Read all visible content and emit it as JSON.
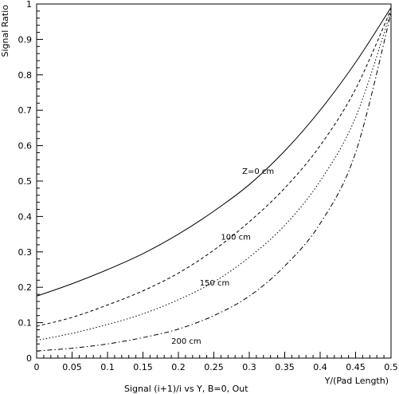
{
  "chart_data": {
    "type": "line",
    "title": "",
    "xlabel": "Y/(Pad Length)",
    "ylabel": "Signal Ratio",
    "caption": "Signal (i+1)/i vs Y, B=0, Out",
    "xlim": [
      0,
      0.5
    ],
    "ylim": [
      0,
      1
    ],
    "grid": false,
    "legend": "none",
    "x_ticks": [
      0,
      0.05,
      0.1,
      0.15,
      0.2,
      0.25,
      0.3,
      0.35,
      0.4,
      0.45,
      0.5
    ],
    "x_tick_labels": [
      "0",
      "0.05",
      "0.1",
      "0.15",
      "0.2",
      "0.25",
      "0.3",
      "0.35",
      "0.4",
      "0.45",
      "0.5"
    ],
    "y_ticks": [
      0,
      0.1,
      0.2,
      0.3,
      0.4,
      0.5,
      0.6,
      0.7,
      0.8,
      0.9,
      1
    ],
    "y_tick_labels": [
      "0",
      "0.1",
      "0.2",
      "0.3",
      "0.4",
      "0.5",
      "0.6",
      "0.7",
      "0.8",
      "0.9",
      "1"
    ],
    "x": [
      0,
      0.05,
      0.1,
      0.15,
      0.2,
      0.25,
      0.3,
      0.35,
      0.4,
      0.45,
      0.5
    ],
    "series": [
      {
        "name": "Z=0 cm",
        "dash": "solid",
        "label_at": [
          0.29,
          0.52
        ],
        "values": [
          0.175,
          0.21,
          0.25,
          0.295,
          0.35,
          0.415,
          0.49,
          0.585,
          0.7,
          0.835,
          0.99
        ]
      },
      {
        "name": "100 cm",
        "dash": "dashed",
        "label_at": [
          0.26,
          0.335
        ],
        "values": [
          0.09,
          0.115,
          0.15,
          0.19,
          0.24,
          0.305,
          0.385,
          0.48,
          0.6,
          0.76,
          0.985
        ]
      },
      {
        "name": "150 cm",
        "dash": "dotted",
        "label_at": [
          0.23,
          0.205
        ],
        "values": [
          0.05,
          0.07,
          0.095,
          0.125,
          0.165,
          0.215,
          0.285,
          0.375,
          0.5,
          0.68,
          0.98
        ]
      },
      {
        "name": "200 cm",
        "dash": "dashdot",
        "label_at": [
          0.19,
          0.04
        ],
        "values": [
          0.02,
          0.028,
          0.04,
          0.058,
          0.082,
          0.12,
          0.175,
          0.26,
          0.38,
          0.58,
          0.975
        ]
      }
    ]
  }
}
